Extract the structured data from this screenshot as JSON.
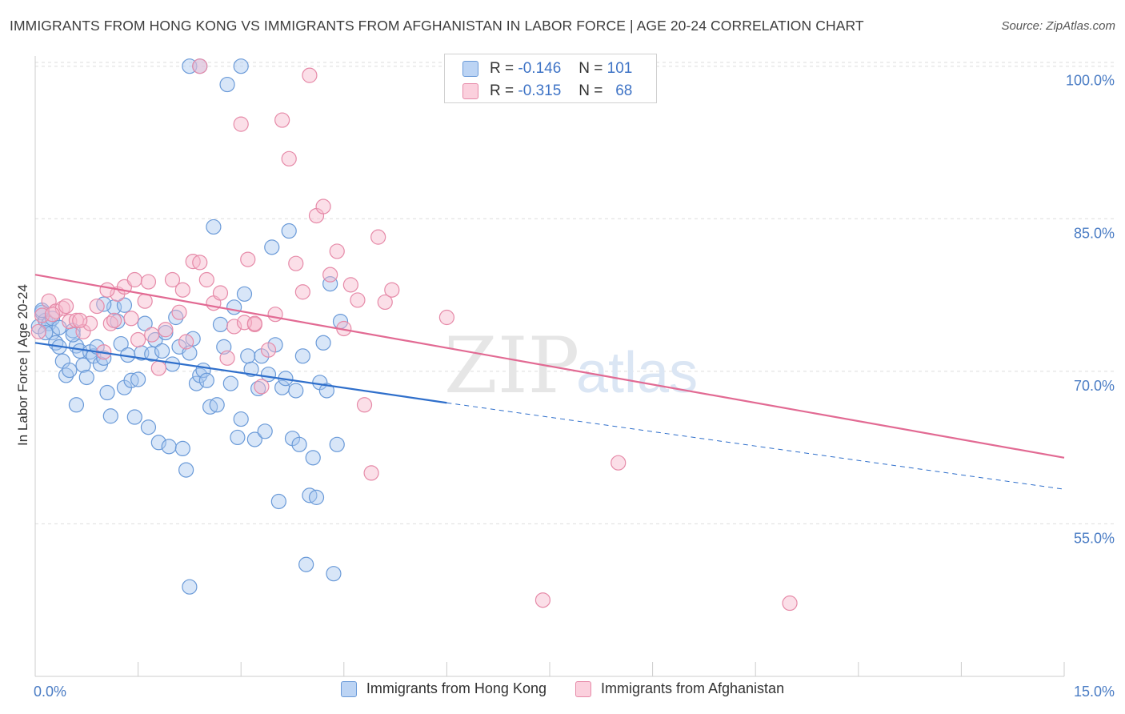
{
  "title": "IMMIGRANTS FROM HONG KONG VS IMMIGRANTS FROM AFGHANISTAN IN LABOR FORCE | AGE 20-24 CORRELATION CHART",
  "source": "Source: ZipAtlas.com",
  "watermark": {
    "zip": "ZIP",
    "atlas": "atlas"
  },
  "colors": {
    "blue_fill": "#a8c8f0",
    "blue_stroke": "#6a9ad8",
    "blue_line": "#2f6fcb",
    "pink_fill": "#f6b8cb",
    "pink_stroke": "#e68aa8",
    "pink_line": "#e26a93",
    "axis_text": "#4a7cc4",
    "grid": "#dddddd"
  },
  "correlation_box": {
    "rows": [
      {
        "r_label": "R =",
        "r_value": "-0.146",
        "n_label": "N =",
        "n_value": "101"
      },
      {
        "r_label": "R =",
        "r_value": "-0.315",
        "n_label": "N =",
        "n_value": "68"
      }
    ]
  },
  "legend": [
    {
      "label": "Immigrants from Hong Kong"
    },
    {
      "label": "Immigrants from Afghanistan"
    }
  ],
  "chart_data": {
    "type": "scatter",
    "ylabel": "In Labor Force | Age 20-24",
    "xlim": [
      0,
      15
    ],
    "ylim": [
      40,
      101
    ],
    "x_tick_labels": [
      {
        "value": 0,
        "label": "0.0%"
      },
      {
        "value": 15,
        "label": "15.0%"
      }
    ],
    "y_tick_labels": [
      {
        "value": 100,
        "label": "100.0%"
      },
      {
        "value": 85,
        "label": "85.0%"
      },
      {
        "value": 70,
        "label": "70.0%"
      },
      {
        "value": 55,
        "label": "55.0%"
      }
    ],
    "y_gridlines": [
      100,
      85,
      70,
      55
    ],
    "x_minor_ticks": [
      0,
      1.5,
      3,
      4.5,
      6,
      7.5,
      9,
      10.5,
      12,
      13.5,
      15
    ],
    "series": [
      {
        "name": "Immigrants from Hong Kong",
        "trend": {
          "x0": 0,
          "y0": 72.8,
          "x1": 6,
          "y1": 66.9,
          "dashed_to_x": 15,
          "dashed_to_y": 58.4
        },
        "points": [
          [
            0.05,
            74.4
          ],
          [
            0.1,
            75.8
          ],
          [
            0.15,
            75.0
          ],
          [
            0.2,
            74.7
          ],
          [
            0.25,
            73.8
          ],
          [
            0.3,
            72.8
          ],
          [
            0.35,
            72.4
          ],
          [
            0.4,
            71.0
          ],
          [
            0.45,
            69.6
          ],
          [
            0.5,
            70.1
          ],
          [
            0.55,
            74.0
          ],
          [
            0.6,
            72.5
          ],
          [
            0.65,
            72.0
          ],
          [
            0.7,
            70.6
          ],
          [
            0.75,
            69.4
          ],
          [
            0.8,
            71.9
          ],
          [
            0.85,
            71.5
          ],
          [
            0.9,
            72.4
          ],
          [
            0.95,
            70.7
          ],
          [
            1.0,
            71.3
          ],
          [
            1.05,
            67.9
          ],
          [
            1.1,
            65.6
          ],
          [
            1.15,
            76.3
          ],
          [
            1.2,
            74.9
          ],
          [
            1.25,
            72.7
          ],
          [
            1.3,
            68.4
          ],
          [
            1.35,
            71.6
          ],
          [
            1.4,
            69.1
          ],
          [
            1.45,
            65.5
          ],
          [
            1.5,
            69.2
          ],
          [
            1.55,
            71.8
          ],
          [
            1.6,
            74.7
          ],
          [
            1.65,
            64.5
          ],
          [
            1.7,
            71.7
          ],
          [
            1.75,
            73.1
          ],
          [
            1.8,
            63.0
          ],
          [
            1.85,
            72.0
          ],
          [
            1.9,
            73.8
          ],
          [
            1.95,
            62.6
          ],
          [
            2.0,
            70.7
          ],
          [
            2.05,
            75.3
          ],
          [
            2.1,
            72.4
          ],
          [
            2.15,
            62.4
          ],
          [
            2.2,
            60.3
          ],
          [
            2.25,
            71.8
          ],
          [
            2.3,
            73.2
          ],
          [
            2.35,
            68.8
          ],
          [
            2.4,
            69.6
          ],
          [
            2.45,
            70.1
          ],
          [
            2.5,
            69.1
          ],
          [
            2.55,
            66.5
          ],
          [
            2.6,
            84.2
          ],
          [
            2.65,
            66.7
          ],
          [
            2.7,
            74.6
          ],
          [
            2.75,
            72.4
          ],
          [
            2.8,
            98.2
          ],
          [
            2.85,
            68.8
          ],
          [
            2.9,
            76.3
          ],
          [
            2.95,
            63.5
          ],
          [
            3.0,
            65.3
          ],
          [
            3.05,
            77.6
          ],
          [
            3.1,
            71.5
          ],
          [
            3.15,
            70.2
          ],
          [
            3.2,
            63.3
          ],
          [
            3.25,
            68.3
          ],
          [
            3.3,
            71.5
          ],
          [
            3.35,
            64.1
          ],
          [
            3.4,
            69.7
          ],
          [
            3.45,
            82.2
          ],
          [
            3.5,
            72.6
          ],
          [
            3.55,
            57.2
          ],
          [
            3.6,
            68.4
          ],
          [
            3.65,
            69.3
          ],
          [
            3.7,
            83.8
          ],
          [
            3.75,
            63.4
          ],
          [
            3.8,
            68.1
          ],
          [
            3.85,
            62.8
          ],
          [
            3.9,
            71.5
          ],
          [
            3.95,
            51.0
          ],
          [
            4.0,
            57.8
          ],
          [
            4.05,
            61.5
          ],
          [
            4.1,
            57.6
          ],
          [
            4.15,
            68.9
          ],
          [
            4.2,
            72.8
          ],
          [
            4.25,
            68.1
          ],
          [
            4.3,
            78.6
          ],
          [
            4.35,
            50.1
          ],
          [
            4.4,
            62.8
          ],
          [
            4.45,
            74.9
          ],
          [
            2.25,
            48.8
          ],
          [
            2.25,
            100
          ],
          [
            2.4,
            100
          ],
          [
            3.0,
            100
          ],
          [
            1.0,
            76.6
          ],
          [
            0.6,
            66.7
          ],
          [
            0.25,
            75.2
          ],
          [
            0.15,
            73.8
          ],
          [
            0.1,
            76.0
          ],
          [
            0.35,
            74.3
          ],
          [
            0.55,
            73.6
          ],
          [
            1.3,
            76.5
          ]
        ]
      },
      {
        "name": "Immigrants from Afghanistan",
        "trend": {
          "x0": 0,
          "y0": 79.5,
          "x1": 15,
          "y1": 61.5
        },
        "points": [
          [
            0.05,
            73.9
          ],
          [
            0.1,
            75.5
          ],
          [
            0.2,
            76.9
          ],
          [
            0.3,
            75.9
          ],
          [
            0.4,
            76.2
          ],
          [
            0.5,
            74.9
          ],
          [
            0.6,
            75.0
          ],
          [
            0.7,
            73.9
          ],
          [
            0.8,
            74.7
          ],
          [
            0.9,
            76.4
          ],
          [
            1.0,
            71.9
          ],
          [
            1.1,
            74.7
          ],
          [
            1.2,
            77.6
          ],
          [
            1.3,
            78.3
          ],
          [
            1.4,
            75.2
          ],
          [
            1.5,
            73.1
          ],
          [
            1.6,
            76.9
          ],
          [
            1.7,
            73.6
          ],
          [
            1.8,
            70.3
          ],
          [
            1.9,
            74.1
          ],
          [
            2.0,
            79.0
          ],
          [
            2.1,
            75.8
          ],
          [
            2.2,
            72.9
          ],
          [
            2.3,
            80.8
          ],
          [
            2.4,
            80.7
          ],
          [
            2.5,
            79.0
          ],
          [
            2.6,
            76.7
          ],
          [
            2.7,
            77.7
          ],
          [
            2.8,
            71.3
          ],
          [
            2.9,
            74.4
          ],
          [
            3.0,
            94.3
          ],
          [
            3.1,
            81.0
          ],
          [
            3.2,
            74.6
          ],
          [
            3.3,
            68.5
          ],
          [
            3.4,
            72.1
          ],
          [
            3.5,
            75.6
          ],
          [
            3.6,
            94.7
          ],
          [
            3.7,
            90.9
          ],
          [
            3.8,
            80.6
          ],
          [
            3.9,
            77.8
          ],
          [
            4.0,
            99.1
          ],
          [
            4.1,
            85.3
          ],
          [
            4.2,
            86.2
          ],
          [
            4.3,
            79.5
          ],
          [
            4.4,
            81.8
          ],
          [
            4.5,
            74.2
          ],
          [
            4.6,
            78.5
          ],
          [
            4.7,
            77.0
          ],
          [
            4.8,
            66.7
          ],
          [
            4.9,
            60.0
          ],
          [
            5.0,
            83.2
          ],
          [
            5.1,
            76.8
          ],
          [
            5.2,
            78.0
          ],
          [
            6.0,
            75.3
          ],
          [
            8.5,
            61.0
          ],
          [
            2.4,
            100
          ],
          [
            0.25,
            75.6
          ],
          [
            0.45,
            76.4
          ],
          [
            0.65,
            75.0
          ],
          [
            1.05,
            78.0
          ],
          [
            1.15,
            75.0
          ],
          [
            1.45,
            79.0
          ],
          [
            1.65,
            78.8
          ],
          [
            2.15,
            78.0
          ],
          [
            3.05,
            74.8
          ],
          [
            7.4,
            47.5
          ],
          [
            11.0,
            47.2
          ],
          [
            3.2,
            74.7
          ]
        ]
      }
    ]
  }
}
